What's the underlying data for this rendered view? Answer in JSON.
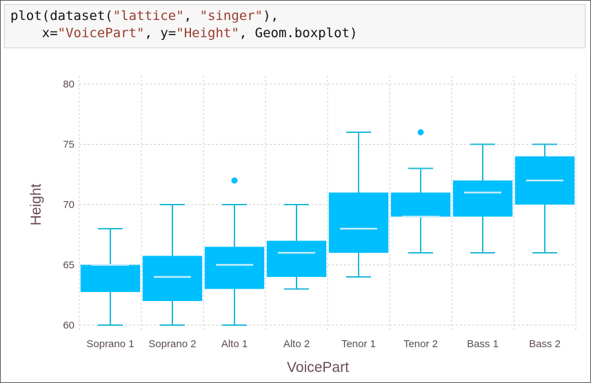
{
  "code": {
    "fn_open": "plot(dataset(",
    "arg_package": "\"lattice\"",
    "sep1": ", ",
    "arg_dataset": "\"singer\"",
    "close1": "),",
    "indent": "    ",
    "x_key": "x=",
    "x_value": "\"VoicePart\"",
    "sep2": ", ",
    "y_key": "y=",
    "y_value": "\"Height\"",
    "tail": ", Geom.boxplot)"
  },
  "chart_data": {
    "type": "boxplot",
    "xlabel": "VoicePart",
    "ylabel": "Height",
    "ylim": [
      60,
      80
    ],
    "yticks": [
      60,
      65,
      70,
      75,
      80
    ],
    "grid": true,
    "colors": {
      "box": "#00bfff",
      "whisker": "#1eb8d6",
      "median": "#c9eef8",
      "outlier": "#00bfff",
      "grid": "#cccccc"
    },
    "categories": [
      "Soprano 1",
      "Soprano 2",
      "Alto 1",
      "Alto 2",
      "Tenor 1",
      "Tenor 2",
      "Bass 1",
      "Bass 2"
    ],
    "boxes": [
      {
        "min": 60,
        "q1": 62.75,
        "median": 65,
        "q3": 65,
        "max": 68,
        "outliers": []
      },
      {
        "min": 60,
        "q1": 62,
        "median": 64,
        "q3": 65.75,
        "max": 70,
        "outliers": []
      },
      {
        "min": 60,
        "q1": 63,
        "median": 65,
        "q3": 66.5,
        "max": 70,
        "outliers": [
          72
        ]
      },
      {
        "min": 63,
        "q1": 64,
        "median": 66,
        "q3": 67,
        "max": 70,
        "outliers": []
      },
      {
        "min": 64,
        "q1": 66,
        "median": 68,
        "q3": 71,
        "max": 76,
        "outliers": []
      },
      {
        "min": 66,
        "q1": 69,
        "median": 69,
        "q3": 71,
        "max": 73,
        "outliers": [
          76
        ]
      },
      {
        "min": 66,
        "q1": 69,
        "median": 71,
        "q3": 72,
        "max": 75,
        "outliers": []
      },
      {
        "min": 66,
        "q1": 70,
        "median": 72,
        "q3": 74,
        "max": 75,
        "outliers": []
      }
    ]
  }
}
